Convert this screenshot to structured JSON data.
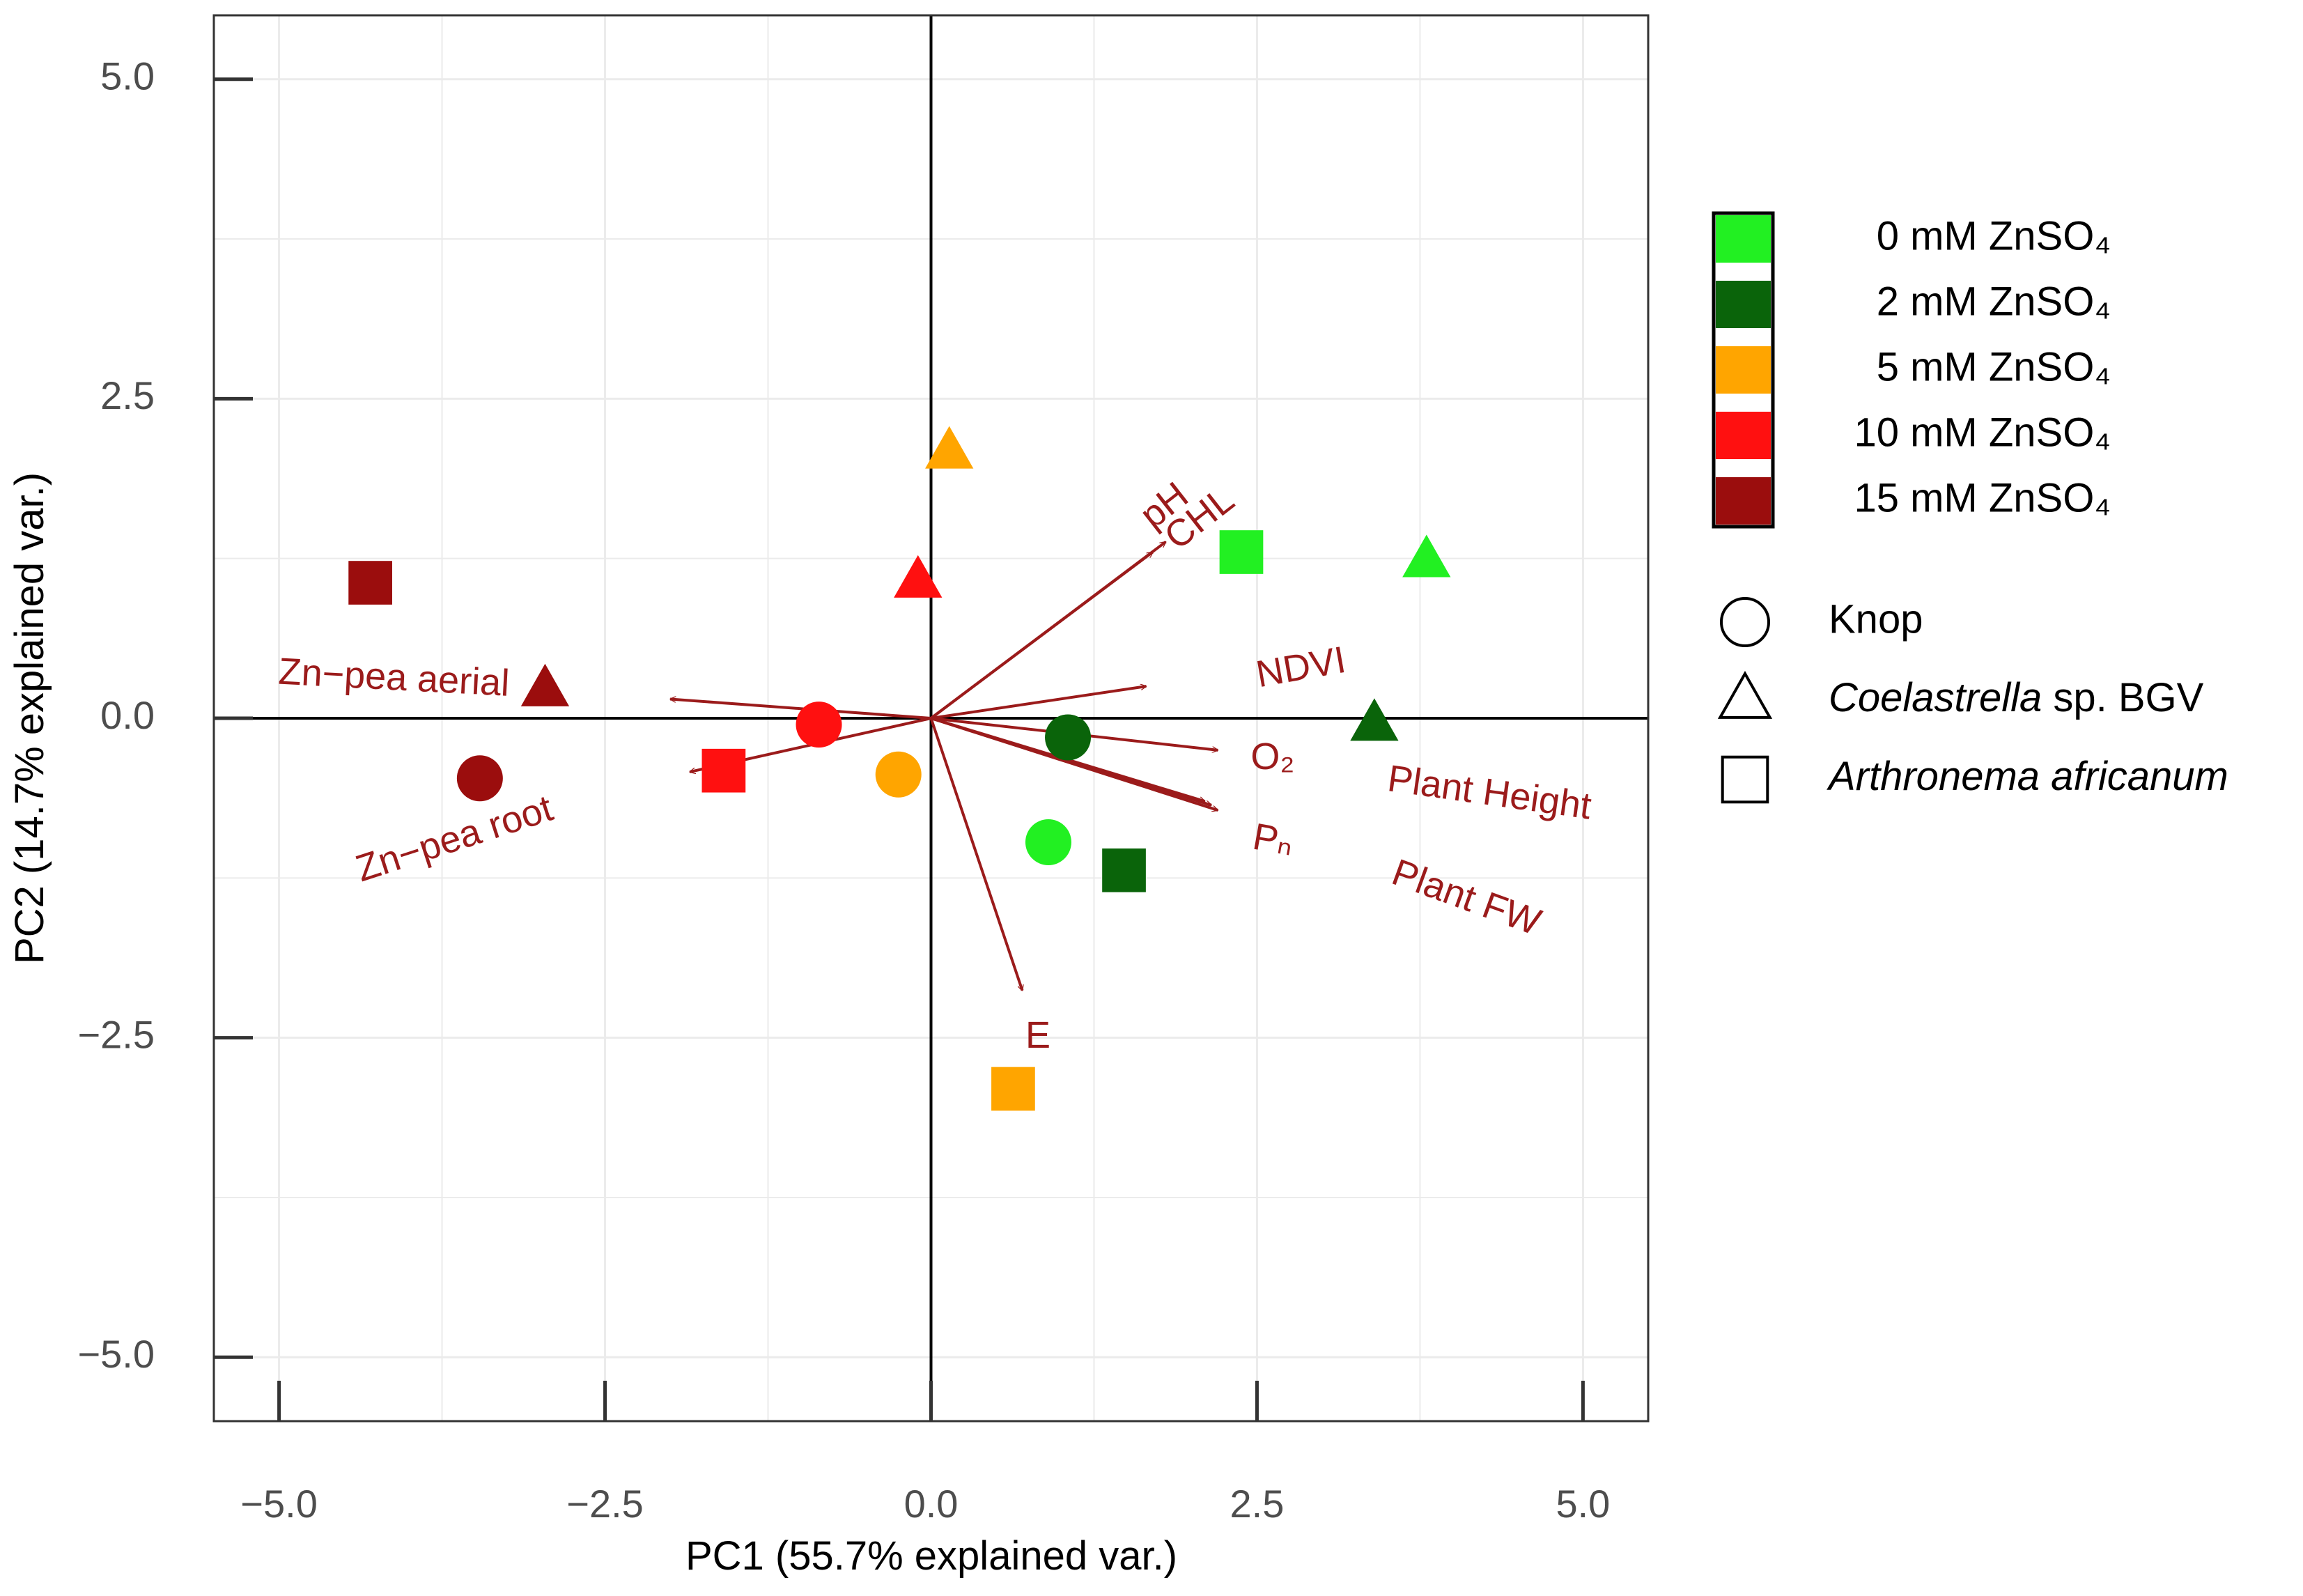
{
  "chart_data": {
    "type": "scatter",
    "title": "",
    "xlabel": "PC1 (55.7% explained var.)",
    "ylabel": "PC2 (14.7% explained var.)",
    "xlim": [
      -5.5,
      5.5
    ],
    "ylim": [
      -5.5,
      5.5
    ],
    "x_ticks": [
      -5.0,
      -2.5,
      0.0,
      2.5,
      5.0
    ],
    "x_tick_labels": [
      "−5.0",
      "−2.5",
      "0.0",
      "2.5",
      "5.0"
    ],
    "y_ticks": [
      5.0,
      2.5,
      0.0,
      -2.5,
      -5.0
    ],
    "y_tick_labels": [
      "5.0",
      "2.5",
      "0.0",
      "−2.5",
      "−5.0"
    ],
    "grid": true,
    "legend_position": "right",
    "colors": {
      "background": "#ffffff",
      "grid": "#ebebeb",
      "axis": "#000000",
      "arrow": "#9b1b1b",
      "outline": "#000000"
    },
    "groups": [
      {
        "key": "0",
        "name": "0 mM ZnSO₄",
        "color": "#22f022"
      },
      {
        "key": "2",
        "name": "2 mM ZnSO₄",
        "color": "#0a640a"
      },
      {
        "key": "5",
        "name": "5 mM ZnSO₄",
        "color": "#ffa500"
      },
      {
        "key": "10",
        "name": "10 mM ZnSO₄",
        "color": "#ff1010"
      },
      {
        "key": "15",
        "name": "15 mM ZnSO₄",
        "color": "#9b0d0d"
      }
    ],
    "shapes": [
      {
        "key": "circle",
        "name": "Knop",
        "name_italic": "",
        "name_suffix": ""
      },
      {
        "key": "triangle",
        "name": "",
        "name_italic": "Coelastrella",
        "name_suffix": " sp. BGV"
      },
      {
        "key": "square",
        "name": "",
        "name_italic": "Arthronema africanum",
        "name_suffix": ""
      }
    ],
    "points": [
      {
        "group": "0",
        "shape": "circle",
        "x": 0.9,
        "y": -0.97
      },
      {
        "group": "0",
        "shape": "triangle",
        "x": 3.8,
        "y": 1.23
      },
      {
        "group": "0",
        "shape": "square",
        "x": 2.38,
        "y": 1.3
      },
      {
        "group": "2",
        "shape": "circle",
        "x": 1.05,
        "y": -0.15
      },
      {
        "group": "2",
        "shape": "triangle",
        "x": 3.4,
        "y": -0.05
      },
      {
        "group": "2",
        "shape": "square",
        "x": 1.48,
        "y": -1.19
      },
      {
        "group": "5",
        "shape": "circle",
        "x": -0.25,
        "y": -0.44
      },
      {
        "group": "5",
        "shape": "triangle",
        "x": 0.14,
        "y": 2.08
      },
      {
        "group": "5",
        "shape": "square",
        "x": 0.63,
        "y": -2.9
      },
      {
        "group": "10",
        "shape": "circle",
        "x": -0.86,
        "y": -0.05
      },
      {
        "group": "10",
        "shape": "triangle",
        "x": -0.1,
        "y": 1.07
      },
      {
        "group": "10",
        "shape": "square",
        "x": -1.59,
        "y": -0.41
      },
      {
        "group": "15",
        "shape": "circle",
        "x": -3.46,
        "y": -0.47
      },
      {
        "group": "15",
        "shape": "triangle",
        "x": -2.96,
        "y": 0.22
      },
      {
        "group": "15",
        "shape": "square",
        "x": -4.3,
        "y": 1.06
      }
    ],
    "loadings": [
      {
        "name": "pH",
        "x": 1.7,
        "y": 1.3
      },
      {
        "name": "CHL",
        "x": 1.8,
        "y": 1.38
      },
      {
        "name": "NDVI",
        "x": 1.65,
        "y": 0.25
      },
      {
        "name": "O₂",
        "x": 2.2,
        "y": -0.25
      },
      {
        "name": "Plant Height",
        "x": 2.15,
        "y": -0.68
      },
      {
        "name": "Pₙ",
        "x": 2.2,
        "y": -0.72
      },
      {
        "name": "Plant FW",
        "x": 2.1,
        "y": -0.65
      },
      {
        "name": "E",
        "x": 0.7,
        "y": -2.13
      },
      {
        "name": "Zn−pea aerial",
        "x": -2.0,
        "y": 0.15
      },
      {
        "name": "Zn−pea root",
        "x": -1.85,
        "y": -0.42
      }
    ],
    "loading_labels": [
      {
        "text": "pH",
        "x": 1.8,
        "y": 1.65,
        "angle": -38,
        "anchor": "middle"
      },
      {
        "text": "CHL",
        "x": 2.07,
        "y": 1.55,
        "angle": -38,
        "anchor": "middle"
      },
      {
        "text": "NDVI",
        "x": 2.84,
        "y": 0.38,
        "angle": -10,
        "anchor": "middle"
      },
      {
        "text": "O₂",
        "x": 2.62,
        "y": -0.32,
        "angle": 0,
        "anchor": "middle"
      },
      {
        "text": "Plant Height",
        "x": 4.28,
        "y": -0.6,
        "angle": 8,
        "anchor": "middle"
      },
      {
        "text": "Pₙ",
        "x": 2.62,
        "y": -0.97,
        "angle": 10,
        "anchor": "middle"
      },
      {
        "text": "Plant FW",
        "x": 4.1,
        "y": -1.42,
        "angle": 20,
        "anchor": "middle"
      },
      {
        "text": "E",
        "x": 0.82,
        "y": -2.5,
        "angle": 0,
        "anchor": "middle"
      },
      {
        "text": "Zn−pea aerial",
        "x": -4.12,
        "y": 0.3,
        "angle": 3,
        "anchor": "middle"
      },
      {
        "text": "Zn−pea root",
        "x": -3.65,
        "y": -0.96,
        "angle": -18,
        "anchor": "middle"
      }
    ]
  }
}
